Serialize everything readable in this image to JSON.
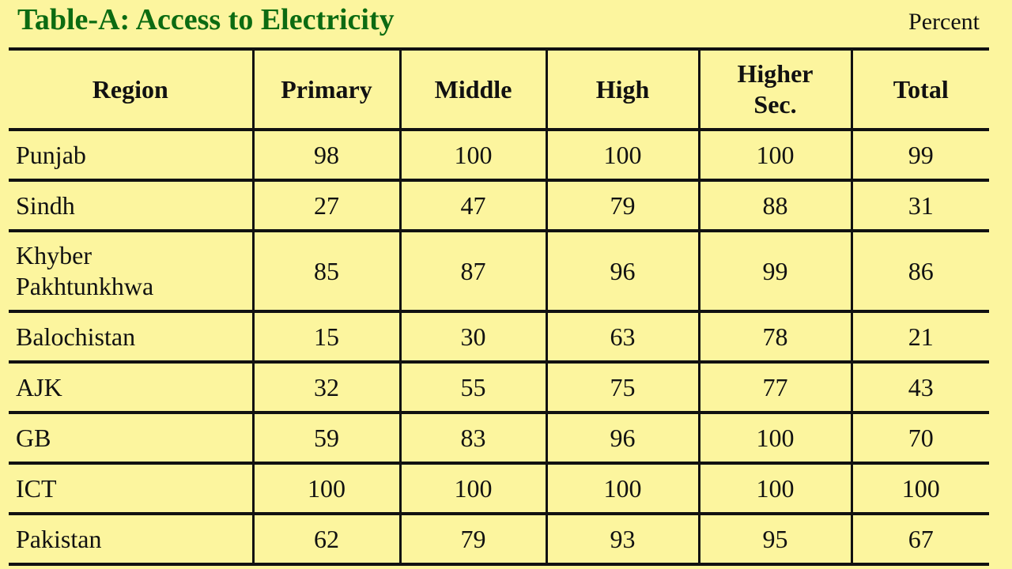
{
  "title": "Table-A: Access to Electricity",
  "unit": "Percent",
  "headers": {
    "region": "Region",
    "primary": "Primary",
    "middle": "Middle",
    "high": "High",
    "higher_sec_line1": "Higher",
    "higher_sec_line2": "Sec.",
    "total": "Total"
  },
  "rows": [
    {
      "region_line1": "Punjab",
      "region_line2": "",
      "primary": "98",
      "middle": "100",
      "high": "100",
      "higher_sec": "100",
      "total": "99"
    },
    {
      "region_line1": "Sindh",
      "region_line2": "",
      "primary": "27",
      "middle": "47",
      "high": "79",
      "higher_sec": "88",
      "total": "31"
    },
    {
      "region_line1": "Khyber",
      "region_line2": "Pakhtunkhwa",
      "primary": "85",
      "middle": "87",
      "high": "96",
      "higher_sec": "99",
      "total": "86"
    },
    {
      "region_line1": "Balochistan",
      "region_line2": "",
      "primary": "15",
      "middle": "30",
      "high": "63",
      "higher_sec": "78",
      "total": "21"
    },
    {
      "region_line1": "AJK",
      "region_line2": "",
      "primary": "32",
      "middle": "55",
      "high": "75",
      "higher_sec": "77",
      "total": "43"
    },
    {
      "region_line1": "GB",
      "region_line2": "",
      "primary": "59",
      "middle": "83",
      "high": "96",
      "higher_sec": "100",
      "total": "70"
    },
    {
      "region_line1": "ICT",
      "region_line2": "",
      "primary": "100",
      "middle": "100",
      "high": "100",
      "higher_sec": "100",
      "total": "100"
    },
    {
      "region_line1": "Pakistan",
      "region_line2": "",
      "primary": "62",
      "middle": "79",
      "high": "93",
      "higher_sec": "95",
      "total": "67"
    }
  ],
  "colors": {
    "background": "#fcf59e",
    "title": "#0c6b12",
    "text": "#111111"
  }
}
